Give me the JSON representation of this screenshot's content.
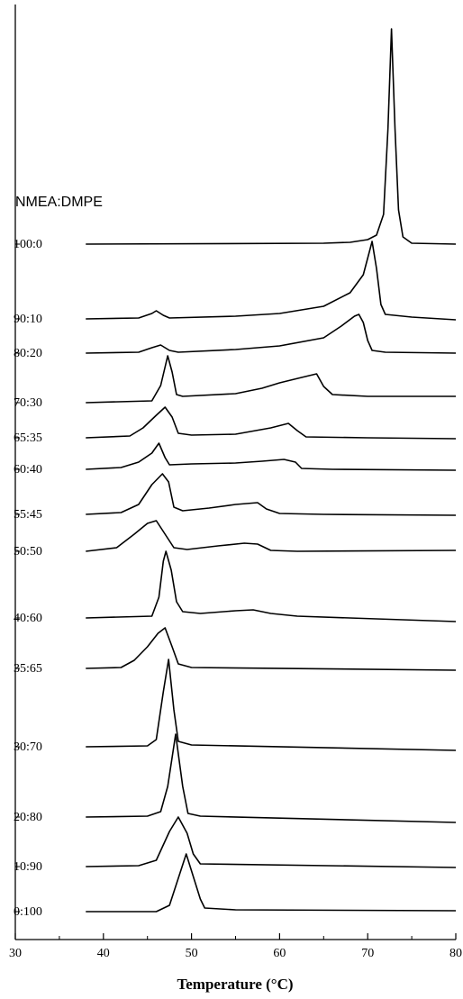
{
  "chart_data": {
    "type": "line",
    "xlabel": "Temperature (°C)",
    "annotation": "NMEA:DMPE",
    "xlim": [
      30,
      80
    ],
    "xticks": [
      30,
      40,
      50,
      60,
      70,
      80
    ],
    "xminorticks": [
      35,
      45,
      55,
      65,
      75
    ],
    "ylim": [
      0,
      1038
    ],
    "series": [
      {
        "name": "100:0",
        "color": "#000000",
        "x": [
          38,
          65,
          68,
          70,
          71,
          71.8,
          72.3,
          72.7,
          73.1,
          73.5,
          74,
          75,
          80
        ],
        "values": [
          772,
          773,
          774,
          777,
          782,
          805,
          900,
          1011,
          900,
          810,
          780,
          773,
          772
        ]
      },
      {
        "name": "90:10",
        "color": "#000000",
        "x": [
          38,
          44,
          45.5,
          46,
          46.8,
          47.5,
          55,
          60,
          65,
          68,
          69.5,
          70.5,
          71,
          71.5,
          72,
          75,
          80
        ],
        "values": [
          689,
          690,
          695,
          698,
          693,
          690,
          692,
          695,
          703,
          718,
          738,
          775,
          745,
          705,
          694,
          691,
          688
        ]
      },
      {
        "name": "80:20",
        "color": "#000000",
        "x": [
          38,
          44,
          45.5,
          46.5,
          47.5,
          48.5,
          55,
          60,
          65,
          67,
          68.5,
          69,
          69.5,
          70,
          70.5,
          72,
          80
        ],
        "values": [
          651,
          652,
          657,
          660,
          654,
          652,
          655,
          659,
          668,
          681,
          692,
          694,
          685,
          665,
          654,
          652,
          651
        ]
      },
      {
        "name": "70:30",
        "color": "#000000",
        "x": [
          38,
          45.5,
          46.5,
          47.3,
          47.8,
          48.3,
          49,
          55,
          58,
          60,
          62.5,
          64.2,
          65,
          66,
          70,
          80
        ],
        "values": [
          596,
          598,
          615,
          648,
          630,
          605,
          603,
          606,
          612,
          618,
          624,
          628,
          614,
          605,
          603,
          603
        ]
      },
      {
        "name": "65:35",
        "color": "#000000",
        "x": [
          38,
          43,
          44.5,
          46,
          47,
          47.8,
          48.5,
          50,
          55,
          59,
          61,
          62,
          63,
          70,
          80
        ],
        "values": [
          557,
          559,
          568,
          582,
          591,
          580,
          562,
          560,
          561,
          568,
          573,
          565,
          558,
          557,
          556
        ]
      },
      {
        "name": "60:40",
        "color": "#000000",
        "x": [
          38,
          42,
          44,
          45.5,
          46.3,
          47,
          47.5,
          50,
          55,
          58,
          60.5,
          61.8,
          62.5,
          66,
          80
        ],
        "values": [
          522,
          524,
          530,
          540,
          551,
          535,
          527,
          528,
          529,
          531,
          533,
          530,
          523,
          522,
          521
        ]
      },
      {
        "name": "55:45",
        "color": "#000000",
        "x": [
          38,
          42,
          44,
          45.5,
          46.7,
          47.4,
          48,
          49,
          52,
          55,
          57.5,
          58.5,
          60,
          65,
          80
        ],
        "values": [
          472,
          474,
          483,
          505,
          517,
          508,
          480,
          476,
          479,
          483,
          485,
          478,
          473,
          472,
          471
        ]
      },
      {
        "name": "50:50",
        "color": "#000000",
        "x": [
          38,
          41.5,
          43.5,
          45,
          46,
          47,
          48,
          49.5,
          53,
          56,
          57.5,
          59,
          62,
          80
        ],
        "values": [
          431,
          435,
          450,
          462,
          465,
          450,
          435,
          433,
          437,
          440,
          439,
          432,
          431,
          432
        ]
      },
      {
        "name": "40:60",
        "color": "#000000",
        "x": [
          38,
          45.5,
          46.3,
          46.8,
          47.1,
          47.7,
          48.3,
          49,
          51,
          55,
          57,
          59,
          62,
          80
        ],
        "values": [
          357,
          359,
          380,
          420,
          431,
          410,
          375,
          364,
          362,
          365,
          366,
          362,
          359,
          353
        ]
      },
      {
        "name": "35:65",
        "color": "#000000",
        "x": [
          38,
          42,
          43.5,
          45,
          46.2,
          47,
          47.8,
          48.5,
          50,
          80
        ],
        "values": [
          301,
          302,
          310,
          325,
          340,
          346,
          325,
          306,
          302,
          299
        ]
      },
      {
        "name": "30:70",
        "color": "#000000",
        "x": [
          38,
          45,
          46,
          46.8,
          47.4,
          48,
          48.5,
          50,
          80
        ],
        "values": [
          214,
          215,
          222,
          275,
          311,
          255,
          220,
          216,
          210
        ]
      },
      {
        "name": "20:80",
        "color": "#000000",
        "x": [
          38,
          45,
          46.5,
          47.3,
          48.2,
          49,
          49.6,
          51,
          80
        ],
        "values": [
          136,
          137,
          142,
          170,
          228,
          170,
          140,
          137,
          130
        ]
      },
      {
        "name": "10:90",
        "color": "#000000",
        "x": [
          38,
          44,
          46,
          47.5,
          48.5,
          49.5,
          50.2,
          51,
          80
        ],
        "values": [
          81,
          82,
          88,
          120,
          136,
          118,
          95,
          84,
          80
        ]
      },
      {
        "name": "0:100",
        "color": "#000000",
        "x": [
          38,
          46,
          47.5,
          48.5,
          49.4,
          50.2,
          51,
          51.5,
          55,
          80
        ],
        "values": [
          31,
          31,
          38,
          68,
          95,
          70,
          45,
          35,
          33,
          32
        ]
      }
    ]
  }
}
